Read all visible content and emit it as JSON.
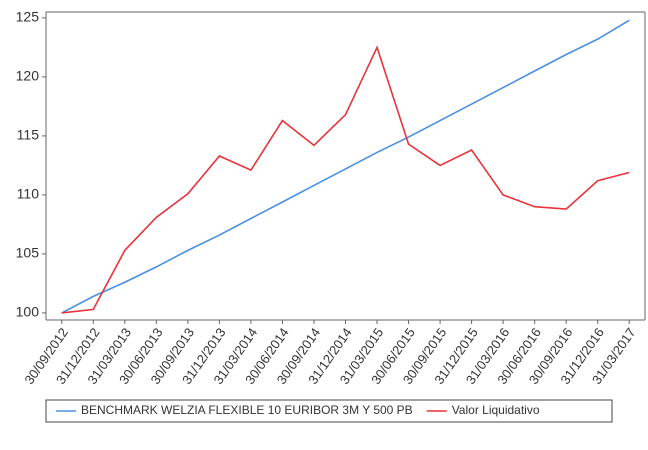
{
  "chart_data": {
    "type": "line",
    "categories": [
      "30/09/2012",
      "31/12/2012",
      "31/03/2013",
      "30/06/2013",
      "30/09/2013",
      "31/12/2013",
      "31/03/2014",
      "30/06/2014",
      "30/09/2014",
      "31/12/2014",
      "31/03/2015",
      "30/06/2015",
      "30/09/2015",
      "31/12/2015",
      "31/03/2016",
      "30/06/2016",
      "30/09/2016",
      "31/12/2016",
      "31/03/2017"
    ],
    "series": [
      {
        "name": "BENCHMARK WELZIA FLEXIBLE 10 EURIBOR 3M Y 500 PB",
        "color": "#4a90e2",
        "values": [
          100,
          101.4,
          102.6,
          103.9,
          105.3,
          106.6,
          108.0,
          109.4,
          110.8,
          112.2,
          113.6,
          114.9,
          116.3,
          117.7,
          119.1,
          120.5,
          121.9,
          123.2,
          124.8
        ]
      },
      {
        "name": "Valor Liquidativo",
        "color": "#e8333a",
        "values": [
          100,
          100.3,
          105.3,
          108.1,
          110.1,
          113.3,
          112.1,
          116.3,
          114.2,
          116.8,
          122.5,
          114.3,
          112.5,
          113.8,
          110.0,
          109.0,
          108.8,
          111.2,
          111.9
        ]
      }
    ],
    "ylim": [
      99.4,
      125.5
    ],
    "yticks": [
      100,
      105,
      110,
      115,
      120,
      125
    ]
  }
}
